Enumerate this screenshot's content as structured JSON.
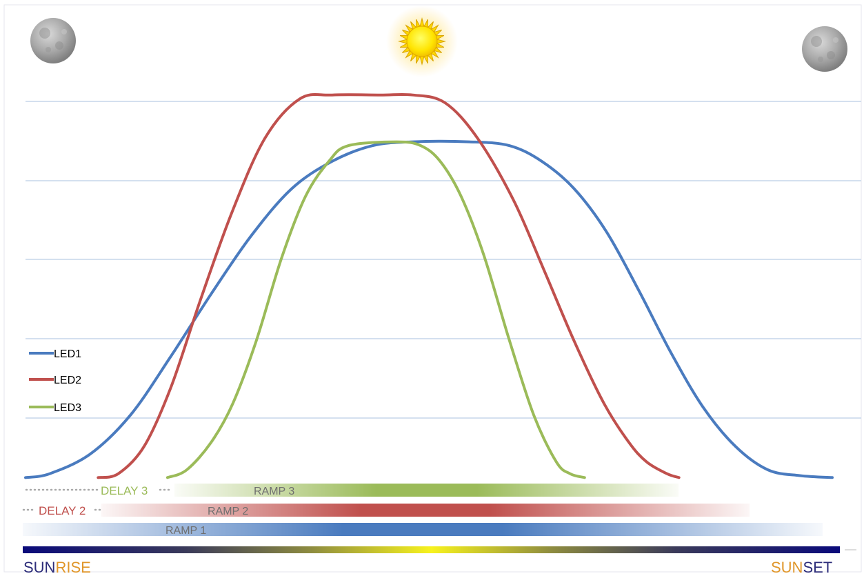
{
  "chart_data": {
    "type": "line",
    "title": "",
    "xlabel": "",
    "ylabel": "",
    "grid": true,
    "legend_placement": "left",
    "x_range": [
      0,
      100
    ],
    "y_range": [
      0,
      100
    ],
    "series": [
      {
        "name": "LED1",
        "color": "#4a7bbf",
        "points": [
          [
            0,
            1
          ],
          [
            3,
            2
          ],
          [
            8,
            7
          ],
          [
            13,
            17
          ],
          [
            18,
            32
          ],
          [
            23,
            48
          ],
          [
            28,
            63
          ],
          [
            33,
            75
          ],
          [
            38,
            82
          ],
          [
            43,
            86
          ],
          [
            48,
            87
          ],
          [
            55,
            87
          ],
          [
            60,
            86
          ],
          [
            64,
            82
          ],
          [
            68,
            75
          ],
          [
            72,
            64
          ],
          [
            76,
            49
          ],
          [
            80,
            33
          ],
          [
            84,
            19
          ],
          [
            88,
            9
          ],
          [
            92,
            3
          ],
          [
            96,
            1.5
          ],
          [
            100,
            1
          ]
        ]
      },
      {
        "name": "LED2",
        "color": "#c0504d",
        "points": [
          [
            9,
            1
          ],
          [
            11.5,
            2
          ],
          [
            14.7,
            9
          ],
          [
            18,
            24
          ],
          [
            21.6,
            46
          ],
          [
            25.6,
            69
          ],
          [
            29.7,
            88
          ],
          [
            34,
            98
          ],
          [
            38,
            99
          ],
          [
            44,
            99
          ],
          [
            48,
            99
          ],
          [
            52,
            97
          ],
          [
            56,
            88
          ],
          [
            60.5,
            72
          ],
          [
            64.3,
            54
          ],
          [
            68,
            36
          ],
          [
            71.7,
            20
          ],
          [
            74.8,
            10
          ],
          [
            77,
            5
          ],
          [
            79.5,
            2
          ],
          [
            81,
            1
          ]
        ]
      },
      {
        "name": "LED3",
        "color": "#9bbb59",
        "points": [
          [
            17.6,
            1
          ],
          [
            20,
            3
          ],
          [
            23,
            10
          ],
          [
            25.7,
            20
          ],
          [
            28.6,
            36
          ],
          [
            31.7,
            57
          ],
          [
            34.7,
            73
          ],
          [
            37.6,
            82
          ],
          [
            40,
            86
          ],
          [
            46,
            87
          ],
          [
            49,
            86
          ],
          [
            51.4,
            82
          ],
          [
            54,
            73
          ],
          [
            56.8,
            58
          ],
          [
            60,
            36
          ],
          [
            63,
            17
          ],
          [
            65.8,
            5
          ],
          [
            67.5,
            2
          ],
          [
            69.3,
            1
          ]
        ]
      }
    ],
    "delays": [
      {
        "label": "DELAY 3",
        "color": "#9bbb59"
      },
      {
        "label": "DELAY 2",
        "color": "#c0504d"
      }
    ],
    "ramps": [
      {
        "label": "RAMP 3",
        "color": "#9bbb59",
        "start": 17.6,
        "end": 69.3
      },
      {
        "label": "RAMP 2",
        "color": "#c0504d",
        "start": 9,
        "end": 81
      },
      {
        "label": "RAMP 1",
        "color": "#4a7bbf",
        "start": 0,
        "end": 100
      }
    ],
    "sunrise": {
      "prefix": "SUN",
      "suffix": "RISE"
    },
    "sunset": {
      "prefix": "SUN",
      "suffix": "SET"
    },
    "icons": [
      "moon-icon",
      "sun-icon",
      "moon-icon"
    ]
  }
}
